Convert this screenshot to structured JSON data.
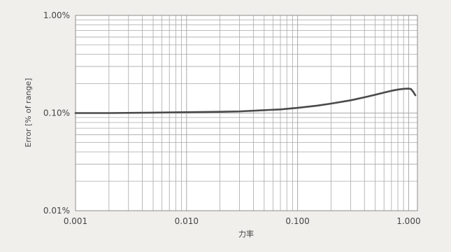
{
  "chart_data": {
    "type": "line",
    "xlabel": "力率",
    "ylabel": "Error [% of range]",
    "x_scale": "log",
    "y_scale": "log",
    "xlim": [
      0.001,
      1.2
    ],
    "ylim": [
      0.01,
      1.0
    ],
    "grid": true,
    "x_tick_labels": [
      "0.001",
      "0.010",
      "0.100",
      "1.000"
    ],
    "x_tick_values": [
      0.001,
      0.01,
      0.1,
      1.0
    ],
    "y_tick_labels": [
      "0.01%",
      "0.10%",
      "1.00%"
    ],
    "y_tick_values": [
      0.01,
      0.1,
      1.0
    ],
    "series": [
      {
        "x": [
          0.001,
          0.002,
          0.005,
          0.01,
          0.02,
          0.03,
          0.05,
          0.07,
          0.1,
          0.15,
          0.2,
          0.3,
          0.4,
          0.5,
          0.6,
          0.7,
          0.8,
          0.9,
          1.0,
          1.05,
          1.1,
          1.15
        ],
        "y": [
          0.1,
          0.1,
          0.101,
          0.102,
          0.103,
          0.104,
          0.107,
          0.109,
          0.113,
          0.119,
          0.125,
          0.135,
          0.145,
          0.154,
          0.162,
          0.169,
          0.174,
          0.177,
          0.178,
          0.176,
          0.165,
          0.152
        ]
      }
    ],
    "colors": {
      "background": "#f1efec",
      "plot_area": "#ffffff",
      "grid": "#a9a9a9",
      "line": "#4a4a4a",
      "text": "#444444"
    }
  }
}
